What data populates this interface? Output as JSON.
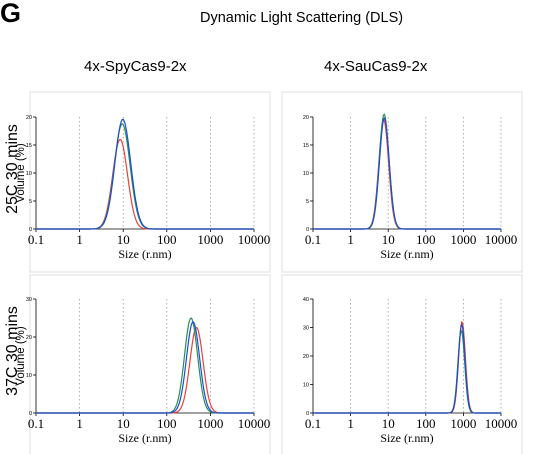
{
  "figure": {
    "panel_letter": "G",
    "title": "Dynamic Light Scattering (DLS)",
    "column_titles": [
      "4x-SpyCas9-2x",
      "4x-SauCas9-2x"
    ],
    "row_titles": [
      "25C  30 mins",
      "37C  30 mins"
    ]
  },
  "chart_data": [
    {
      "type": "line",
      "xscale": "log",
      "xlim": [
        0.1,
        10000
      ],
      "xticks": [
        "0.1",
        "1",
        "10",
        "100",
        "1000",
        "10000"
      ],
      "ylim": [
        0,
        20
      ],
      "yticks": [
        "0",
        "5",
        "10",
        "15",
        "20"
      ],
      "xlabel": "Size (r.nm)",
      "ylabel": "Volume (%)",
      "grid": "vertical dotted",
      "series": [
        {
          "color": "#e8413a",
          "peak_x": 8.5,
          "peak_y": 16,
          "width": 0.17
        },
        {
          "color": "#2e8b57",
          "peak_x": 9.5,
          "peak_y": 18.8,
          "width": 0.18
        },
        {
          "color": "#1c4fd0",
          "peak_x": 9.8,
          "peak_y": 19.6,
          "width": 0.18
        }
      ]
    },
    {
      "type": "line",
      "xscale": "log",
      "xlim": [
        0.1,
        10000
      ],
      "xticks": [
        "0.1",
        "1",
        "10",
        "100",
        "1000",
        "10000"
      ],
      "ylim": [
        0,
        20
      ],
      "yticks": [
        "0",
        "5",
        "10",
        "15",
        "20"
      ],
      "xlabel": "Size (r.nm)",
      "ylabel": "",
      "grid": "vertical dotted",
      "series": [
        {
          "color": "#e8413a",
          "peak_x": 7.6,
          "peak_y": 19.5,
          "width": 0.13
        },
        {
          "color": "#2e8b57",
          "peak_x": 7.8,
          "peak_y": 20.5,
          "width": 0.13
        },
        {
          "color": "#1c4fd0",
          "peak_x": 7.9,
          "peak_y": 19.8,
          "width": 0.13
        }
      ]
    },
    {
      "type": "line",
      "xscale": "log",
      "xlim": [
        0.1,
        10000
      ],
      "xticks": [
        "0.1",
        "1",
        "10",
        "100",
        "1000",
        "10000"
      ],
      "ylim": [
        0,
        30
      ],
      "yticks": [
        "0",
        "10",
        "20",
        "30"
      ],
      "xlabel": "Size (r.nm)",
      "ylabel": "Volume (%)",
      "grid": "vertical dotted",
      "series": [
        {
          "color": "#e8413a",
          "peak_x": 480,
          "peak_y": 22.5,
          "width": 0.15
        },
        {
          "color": "#2e8b57",
          "peak_x": 360,
          "peak_y": 25,
          "width": 0.15
        },
        {
          "color": "#1c4fd0",
          "peak_x": 400,
          "peak_y": 24,
          "width": 0.15
        }
      ]
    },
    {
      "type": "line",
      "xscale": "log",
      "xlim": [
        0.1,
        10000
      ],
      "xticks": [
        "0.1",
        "1",
        "10",
        "100",
        "1000",
        "10000"
      ],
      "ylim": [
        0,
        40
      ],
      "yticks": [
        "0",
        "10",
        "20",
        "30",
        "40"
      ],
      "xlabel": "Size (r.nm)",
      "ylabel": "",
      "grid": "vertical dotted",
      "series": [
        {
          "color": "#e8413a",
          "peak_x": 920,
          "peak_y": 32,
          "width": 0.09
        },
        {
          "color": "#2e8b57",
          "peak_x": 880,
          "peak_y": 29,
          "width": 0.09
        },
        {
          "color": "#1c4fd0",
          "peak_x": 900,
          "peak_y": 31,
          "width": 0.09
        }
      ]
    }
  ]
}
